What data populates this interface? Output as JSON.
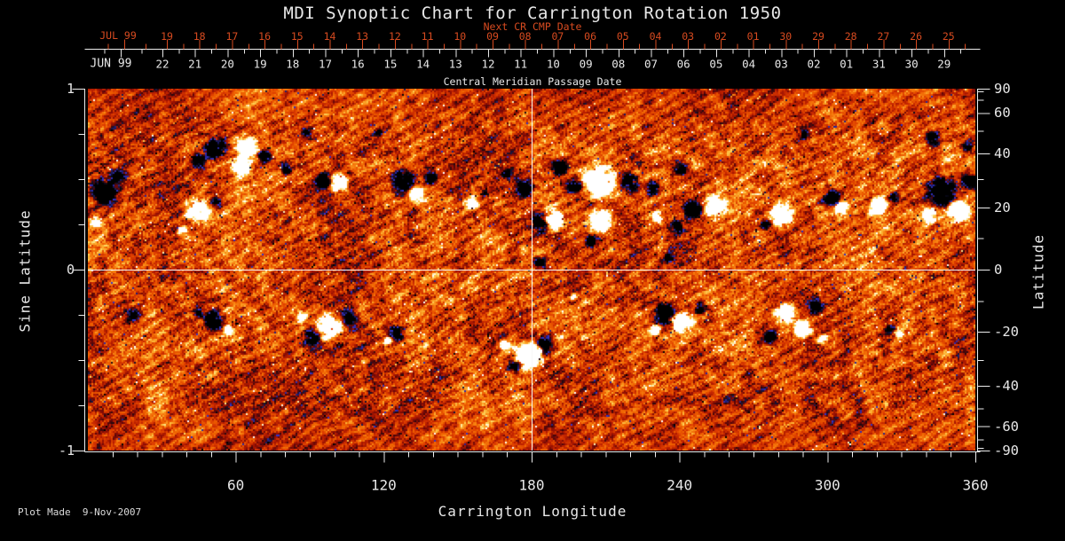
{
  "title": "MDI Synoptic Chart for Carrington Rotation 1950",
  "footer": {
    "plot_made": "Plot Made  9-Nov-2007"
  },
  "colors": {
    "background": "#000000",
    "text_white": "#e8e8e8",
    "axis_white": "#ededed",
    "crosshair": "#f8f8f8",
    "label_red": "#d84b20"
  },
  "top_axis": {
    "label": "Next CR CMP Date",
    "month_label": "JUL 99",
    "dates": [
      "19",
      "18",
      "17",
      "16",
      "15",
      "14",
      "13",
      "12",
      "11",
      "10",
      "09",
      "08",
      "07",
      "06",
      "05",
      "04",
      "03",
      "02",
      "01",
      "30",
      "29",
      "28",
      "27",
      "26",
      "25"
    ]
  },
  "cmp_axis": {
    "label": "Central Meridian Passage Date",
    "month_label": "JUN 99",
    "dates": [
      "22",
      "21",
      "20",
      "19",
      "18",
      "17",
      "16",
      "15",
      "14",
      "13",
      "12",
      "11",
      "10",
      "09",
      "08",
      "07",
      "06",
      "05",
      "04",
      "03",
      "02",
      "01",
      "31",
      "30",
      "29"
    ]
  },
  "chart_data": {
    "type": "heatmap",
    "title": "MDI Synoptic Chart for Carrington Rotation 1950",
    "xlabel": "Carrington Longitude",
    "ylabel_left": "Sine Latitude",
    "ylabel_right": "Latitude",
    "xlim": [
      0,
      360
    ],
    "ylim_sine": [
      -1,
      1
    ],
    "x_ticks_major": [
      60,
      120,
      180,
      240,
      300,
      360
    ],
    "x_tick_minor_step": 10,
    "left_tick_labels": [
      {
        "v": 1,
        "t": "1"
      },
      {
        "v": 0,
        "t": "0"
      },
      {
        "v": -1,
        "t": "-1"
      }
    ],
    "left_tick_minor_step": 0.25,
    "right_tick_labels_deg": [
      90,
      60,
      40,
      20,
      0,
      -20,
      -40,
      -60,
      -90
    ],
    "right_tick_minor_step_deg": 10,
    "reference_lines": {
      "longitude": 180,
      "sine_latitude": 0
    },
    "legend": "none",
    "grid": "off",
    "palette_stops": [
      [
        0.0,
        "#000000"
      ],
      [
        0.05,
        "#0b0b22"
      ],
      [
        0.1,
        "#232394"
      ],
      [
        0.145,
        "#3434cf"
      ],
      [
        0.19,
        "#1a1a52"
      ],
      [
        0.23,
        "#1a0a10"
      ],
      [
        0.3,
        "#54060a"
      ],
      [
        0.38,
        "#8c0d04"
      ],
      [
        0.47,
        "#bc2000"
      ],
      [
        0.56,
        "#dc3c00"
      ],
      [
        0.66,
        "#ee5f00"
      ],
      [
        0.75,
        "#f88312"
      ],
      [
        0.83,
        "#fcae30"
      ],
      [
        0.9,
        "#fdd65e"
      ],
      [
        0.95,
        "#fef0b0"
      ],
      [
        1.0,
        "#ffffff"
      ]
    ],
    "noise": {
      "seed": 1950,
      "base": 0.565,
      "amp": 0.62,
      "speckle": 0.34,
      "streak_amp": 0.09,
      "large_amp": 0.2,
      "salt_low": 0.013,
      "salt_high": 0.007
    },
    "active_regions": [
      [
        51.5,
        0.676,
        3.6,
        -1.7
      ],
      [
        64.1,
        0.672,
        3.2,
        2.1
      ],
      [
        61.9,
        0.569,
        2.9,
        1.9
      ],
      [
        71.3,
        0.637,
        2.2,
        -1.5
      ],
      [
        44.3,
        0.608,
        2.5,
        -1.1
      ],
      [
        43.9,
        0.324,
        3.6,
        1.8
      ],
      [
        51.8,
        0.373,
        1.8,
        -1.0
      ],
      [
        38.2,
        0.225,
        1.8,
        1.1
      ],
      [
        6.8,
        0.436,
        4.3,
        -1.7
      ],
      [
        11.9,
        0.52,
        2.2,
        -1.2
      ],
      [
        2.9,
        0.27,
        1.8,
        1.2
      ],
      [
        80.3,
        0.559,
        1.8,
        -0.9
      ],
      [
        101.9,
        0.48,
        2.9,
        1.6
      ],
      [
        95.0,
        0.49,
        2.5,
        -1.5
      ],
      [
        127.1,
        0.485,
        3.6,
        -1.7
      ],
      [
        132.8,
        0.422,
        2.5,
        1.5
      ],
      [
        138.6,
        0.51,
        2.2,
        -1.2
      ],
      [
        155.2,
        0.373,
        2.2,
        1.2
      ],
      [
        160.9,
        0.431,
        1.4,
        -0.9
      ],
      [
        191.2,
        0.569,
        2.5,
        -1.5
      ],
      [
        196.6,
        0.471,
        2.9,
        -1.8
      ],
      [
        207.4,
        0.485,
        4.7,
        2.6
      ],
      [
        207.7,
        0.275,
        3.6,
        2.2
      ],
      [
        188.3,
        0.289,
        3.2,
        2.0
      ],
      [
        183.2,
        0.265,
        3.2,
        -1.8
      ],
      [
        219.2,
        0.49,
        2.9,
        -1.6
      ],
      [
        228.9,
        0.451,
        2.5,
        -1.3
      ],
      [
        204.1,
        0.167,
        2.2,
        -1.3
      ],
      [
        240.1,
        0.554,
        2.5,
        -1.2
      ],
      [
        230.7,
        0.299,
        1.8,
        1.2
      ],
      [
        245.2,
        0.328,
        2.9,
        -1.6
      ],
      [
        254.5,
        0.353,
        3.2,
        1.8
      ],
      [
        238.7,
        0.24,
        1.8,
        -1.0
      ],
      [
        281.2,
        0.304,
        3.6,
        1.9
      ],
      [
        274.7,
        0.25,
        1.8,
        -1.1
      ],
      [
        301.0,
        0.402,
        2.9,
        -1.5
      ],
      [
        305.3,
        0.348,
        2.2,
        1.3
      ],
      [
        320.0,
        0.353,
        2.9,
        1.6
      ],
      [
        326.2,
        0.402,
        1.8,
        -1.0
      ],
      [
        346.0,
        0.436,
        4.7,
        -2.1
      ],
      [
        353.2,
        0.333,
        3.6,
        1.8
      ],
      [
        357.1,
        0.49,
        2.9,
        -1.6
      ],
      [
        340.9,
        0.309,
        2.5,
        1.3
      ],
      [
        342.4,
        0.73,
        2.5,
        -1.1
      ],
      [
        356.8,
        0.676,
        2.2,
        -1.0
      ],
      [
        88.6,
        0.755,
        1.8,
        -0.9
      ],
      [
        117.4,
        0.76,
        1.4,
        -0.8
      ],
      [
        290.2,
        0.75,
        1.8,
        -0.9
      ],
      [
        176.4,
        0.451,
        2.9,
        -1.5
      ],
      [
        169.6,
        0.534,
        1.8,
        -0.9
      ],
      [
        183.2,
        0.039,
        2.2,
        -1.1
      ],
      [
        235.1,
        0.074,
        1.8,
        -0.9
      ],
      [
        196.6,
        -0.142,
        1.4,
        0.9
      ],
      [
        50.8,
        -0.275,
        3.2,
        -1.6
      ],
      [
        56.5,
        -0.328,
        1.8,
        1.2
      ],
      [
        44.3,
        -0.235,
        1.8,
        -1.0
      ],
      [
        97.6,
        -0.314,
        4.0,
        2.0
      ],
      [
        90.4,
        -0.377,
        2.9,
        -1.5
      ],
      [
        105.5,
        -0.265,
        2.5,
        -1.3
      ],
      [
        86.0,
        -0.26,
        1.8,
        1.1
      ],
      [
        125.6,
        -0.343,
        2.9,
        -1.4
      ],
      [
        121.3,
        -0.387,
        1.4,
        0.9
      ],
      [
        178.6,
        -0.471,
        4.0,
        2.4
      ],
      [
        184.7,
        -0.412,
        2.9,
        -1.6
      ],
      [
        172.4,
        -0.534,
        2.2,
        -1.1
      ],
      [
        168.8,
        -0.412,
        1.8,
        1.2
      ],
      [
        233.6,
        -0.235,
        3.6,
        -1.8
      ],
      [
        240.8,
        -0.284,
        3.2,
        1.7
      ],
      [
        248.0,
        -0.206,
        2.2,
        -1.2
      ],
      [
        230.0,
        -0.328,
        1.8,
        1.1
      ],
      [
        282.9,
        -0.235,
        3.2,
        1.8
      ],
      [
        289.4,
        -0.328,
        2.9,
        1.6
      ],
      [
        294.8,
        -0.201,
        2.5,
        -1.5
      ],
      [
        276.8,
        -0.368,
        2.2,
        -1.2
      ],
      [
        297.7,
        -0.387,
        1.8,
        1.1
      ],
      [
        325.1,
        -0.324,
        1.8,
        -1.0
      ],
      [
        329.0,
        -0.353,
        1.4,
        0.8
      ],
      [
        18.4,
        -0.255,
        2.2,
        -0.9
      ]
    ]
  }
}
